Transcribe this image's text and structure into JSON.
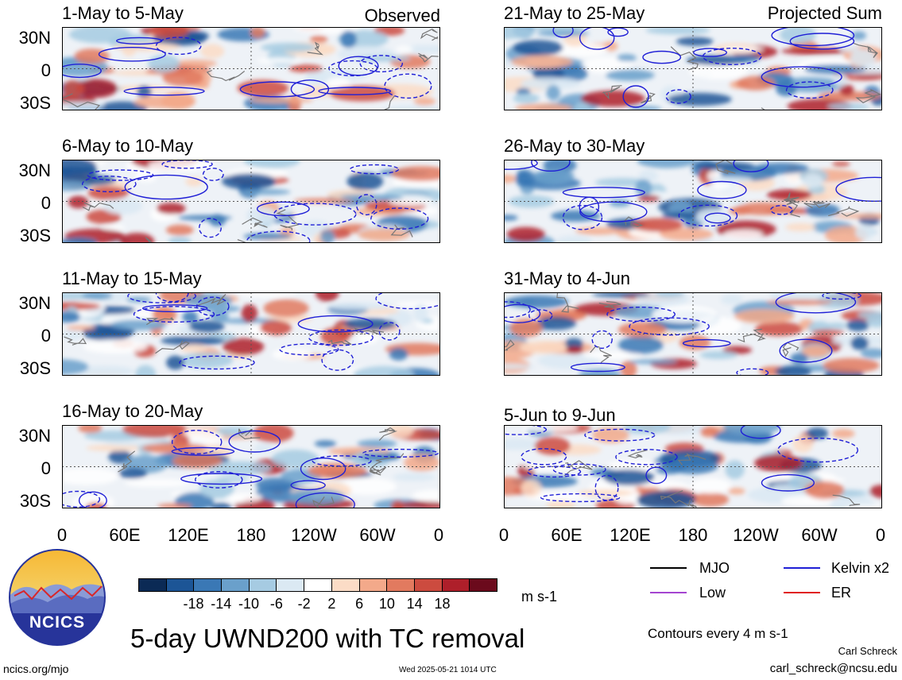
{
  "panels_left": [
    {
      "title": "1-May to 5-May",
      "tag": "Observed"
    },
    {
      "title": "6-May to 10-May",
      "tag": ""
    },
    {
      "title": "11-May to 15-May",
      "tag": ""
    },
    {
      "title": "16-May to 20-May",
      "tag": ""
    }
  ],
  "panels_right": [
    {
      "title": "21-May to 25-May",
      "tag": "Projected Sum"
    },
    {
      "title": "26-May to 30-May",
      "tag": ""
    },
    {
      "title": "31-May to 4-Jun",
      "tag": ""
    },
    {
      "title": "5-Jun to 9-Jun",
      "tag": ""
    }
  ],
  "lat_labels": [
    "30N",
    "0",
    "30S"
  ],
  "lon_labels": [
    "0",
    "60E",
    "120E",
    "180",
    "120W",
    "60W",
    "0"
  ],
  "colorbar": {
    "labels": [
      "-18",
      "-14",
      "-10",
      "-6",
      "-2",
      "2",
      "6",
      "10",
      "14",
      "18"
    ],
    "units": "m s-1",
    "colors": [
      "#0b2a55",
      "#1c5596",
      "#3a78b5",
      "#6aa0cb",
      "#a6cbe2",
      "#dbe9f3",
      "#ffffff",
      "#fbdcc6",
      "#f3a98a",
      "#e27a5f",
      "#cc4b3f",
      "#ae1f2a",
      "#6b0a1c"
    ]
  },
  "legend": [
    {
      "label": "MJO",
      "color": "#000000"
    },
    {
      "label": "Kelvin x2",
      "color": "#1f1fd6"
    },
    {
      "label": "Low",
      "color": "#a445d0"
    },
    {
      "label": "ER",
      "color": "#e02020"
    }
  ],
  "contour_note": "Contours every 4 m s-1",
  "main_title": "5-day UWND200 with TC removal",
  "logo_text": "NCICS",
  "footer": {
    "website": "ncics.org/mjo",
    "timestamp": "Wed 2025-05-21 1014 UTC",
    "author": "Carl Schreck",
    "email": "carl_schreck@ncsu.edu"
  }
}
